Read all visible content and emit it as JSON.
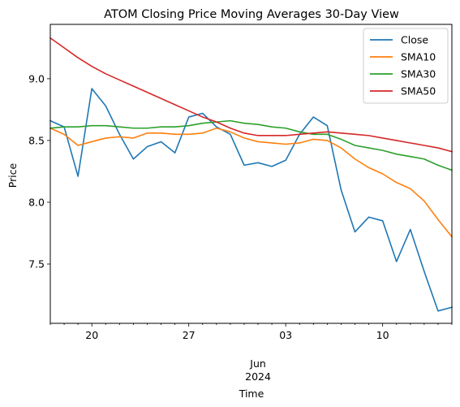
{
  "chart_data": {
    "type": "line",
    "title": "ATOM Closing Price Moving Averages 30-Day View",
    "xlabel": "Time",
    "ylabel": "Price",
    "x_start": "2024-05-17",
    "x_end": "2024-06-15",
    "x_major_ticks": [
      {
        "date": "2024-05-20",
        "label": "20"
      },
      {
        "date": "2024-05-27",
        "label": "27"
      },
      {
        "date": "2024-06-03",
        "label": "03"
      },
      {
        "date": "2024-06-10",
        "label": "10"
      }
    ],
    "x_month_label": "Jun",
    "x_year_label": "2024",
    "x_month_label_date": "2024-06-01",
    "ylim": [
      7.02,
      9.44
    ],
    "y_ticks": [
      "7.5",
      "8.0",
      "8.5",
      "9.0"
    ],
    "legend_position": "top-right",
    "grid": false,
    "x": [
      "2024-05-17",
      "2024-05-18",
      "2024-05-19",
      "2024-05-20",
      "2024-05-21",
      "2024-05-22",
      "2024-05-23",
      "2024-05-24",
      "2024-05-25",
      "2024-05-26",
      "2024-05-27",
      "2024-05-28",
      "2024-05-29",
      "2024-05-30",
      "2024-05-31",
      "2024-06-01",
      "2024-06-02",
      "2024-06-03",
      "2024-06-04",
      "2024-06-05",
      "2024-06-06",
      "2024-06-07",
      "2024-06-08",
      "2024-06-09",
      "2024-06-10",
      "2024-06-11",
      "2024-06-12",
      "2024-06-13",
      "2024-06-14",
      "2024-06-15"
    ],
    "series": [
      {
        "name": "Close",
        "color": "#1f77b4",
        "values": [
          8.66,
          8.61,
          8.21,
          8.92,
          8.78,
          8.55,
          8.35,
          8.45,
          8.49,
          8.4,
          8.69,
          8.72,
          8.61,
          8.55,
          8.3,
          8.32,
          8.29,
          8.34,
          8.55,
          8.69,
          8.62,
          8.1,
          7.76,
          7.88,
          7.85,
          7.52,
          7.78,
          7.44,
          7.12,
          7.15
        ]
      },
      {
        "name": "SMA10",
        "color": "#ff7f0e",
        "values": [
          8.6,
          8.55,
          8.46,
          8.49,
          8.52,
          8.53,
          8.52,
          8.56,
          8.56,
          8.55,
          8.55,
          8.56,
          8.6,
          8.57,
          8.52,
          8.49,
          8.48,
          8.47,
          8.48,
          8.51,
          8.5,
          8.44,
          8.35,
          8.28,
          8.23,
          8.16,
          8.11,
          8.01,
          7.86,
          7.72
        ]
      },
      {
        "name": "SMA30",
        "color": "#2ca02c",
        "values": [
          8.6,
          8.61,
          8.61,
          8.62,
          8.62,
          8.61,
          8.6,
          8.6,
          8.61,
          8.61,
          8.62,
          8.64,
          8.65,
          8.66,
          8.64,
          8.63,
          8.61,
          8.6,
          8.57,
          8.55,
          8.55,
          8.51,
          8.46,
          8.44,
          8.42,
          8.39,
          8.37,
          8.35,
          8.3,
          8.26
        ]
      },
      {
        "name": "SMA50",
        "color": "#d62728",
        "values": [
          9.33,
          9.25,
          9.17,
          9.1,
          9.04,
          8.99,
          8.94,
          8.89,
          8.84,
          8.79,
          8.74,
          8.69,
          8.65,
          8.6,
          8.56,
          8.54,
          8.54,
          8.54,
          8.55,
          8.56,
          8.57,
          8.56,
          8.55,
          8.54,
          8.52,
          8.5,
          8.48,
          8.46,
          8.44,
          8.41
        ]
      }
    ]
  }
}
